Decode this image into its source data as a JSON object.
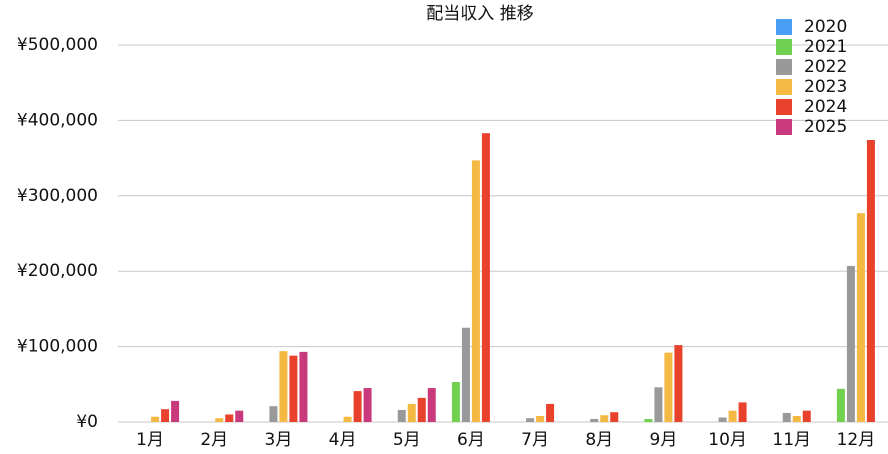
{
  "chart_data": {
    "type": "bar",
    "title": "配当収入 推移",
    "categories": [
      "1月",
      "2月",
      "3月",
      "4月",
      "5月",
      "6月",
      "7月",
      "8月",
      "9月",
      "10月",
      "11月",
      "12月"
    ],
    "series": [
      {
        "name": "2020",
        "color": "#4a9ff5",
        "values": [
          0,
          0,
          0,
          0,
          0,
          0,
          0,
          0,
          0,
          0,
          0,
          0
        ]
      },
      {
        "name": "2021",
        "color": "#6fd14f",
        "values": [
          0,
          0,
          0,
          0,
          0,
          53000,
          0,
          0,
          4000,
          0,
          0,
          44000
        ]
      },
      {
        "name": "2022",
        "color": "#999999",
        "values": [
          0,
          0,
          21000,
          0,
          16000,
          125000,
          5000,
          4000,
          46000,
          6000,
          12000,
          207000
        ]
      },
      {
        "name": "2023",
        "color": "#f4b942",
        "values": [
          7000,
          5000,
          94000,
          7000,
          24000,
          347000,
          8000,
          9000,
          92000,
          15000,
          8000,
          277000
        ]
      },
      {
        "name": "2024",
        "color": "#e8412c",
        "values": [
          17000,
          10000,
          88000,
          41000,
          32000,
          383000,
          24000,
          13000,
          102000,
          26000,
          15000,
          374000
        ]
      },
      {
        "name": "2025",
        "color": "#c93a7c",
        "values": [
          28000,
          15000,
          93000,
          45000,
          45000,
          null,
          null,
          null,
          null,
          null,
          null,
          null
        ]
      }
    ],
    "ylim": [
      0,
      500000
    ],
    "yticks": [
      {
        "value": 0,
        "label": "¥0"
      },
      {
        "value": 100000,
        "label": "¥100,000"
      },
      {
        "value": 200000,
        "label": "¥200,000"
      },
      {
        "value": 300000,
        "label": "¥300,000"
      },
      {
        "value": 400000,
        "label": "¥400,000"
      },
      {
        "value": 500000,
        "label": "¥500,000"
      }
    ],
    "grid": true,
    "legend": "top-right"
  }
}
